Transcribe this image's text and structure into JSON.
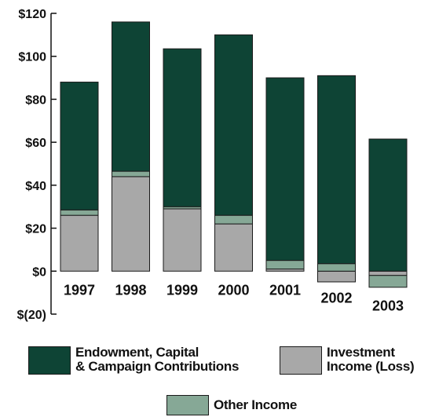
{
  "chart_data": {
    "type": "bar",
    "stacked": true,
    "categories": [
      "1997",
      "1998",
      "1999",
      "2000",
      "2001",
      "2002",
      "2003"
    ],
    "y_tick_labels": [
      "$(20)",
      "$0",
      "$20",
      "$40",
      "$60",
      "$80",
      "$100",
      "$120"
    ],
    "y_ticks": [
      -20,
      0,
      20,
      40,
      60,
      80,
      100,
      120
    ],
    "ylim": [
      -20,
      120
    ],
    "grid": false,
    "legend_position": "bottom",
    "series": [
      {
        "key": "investment",
        "name": "Investment Income (Loss)",
        "name_lines": [
          "Investment",
          "Income (Loss)"
        ],
        "color": "#a8a8a8",
        "values": [
          26,
          44,
          29,
          22,
          1,
          -5,
          -2
        ]
      },
      {
        "key": "other",
        "name": "Other Income",
        "name_lines": [
          "Other Income"
        ],
        "color": "#86a896",
        "values": [
          2.5,
          2.5,
          1,
          4,
          4,
          3.5,
          -5.5
        ]
      },
      {
        "key": "endowment",
        "name": "Endowment, Capital & Campaign Contributions",
        "name_lines": [
          "Endowment, Capital",
          "& Campaign Contributions"
        ],
        "color": "#0e4435",
        "values": [
          59.5,
          69.5,
          73.5,
          84,
          85,
          87.5,
          61.5
        ]
      }
    ]
  }
}
